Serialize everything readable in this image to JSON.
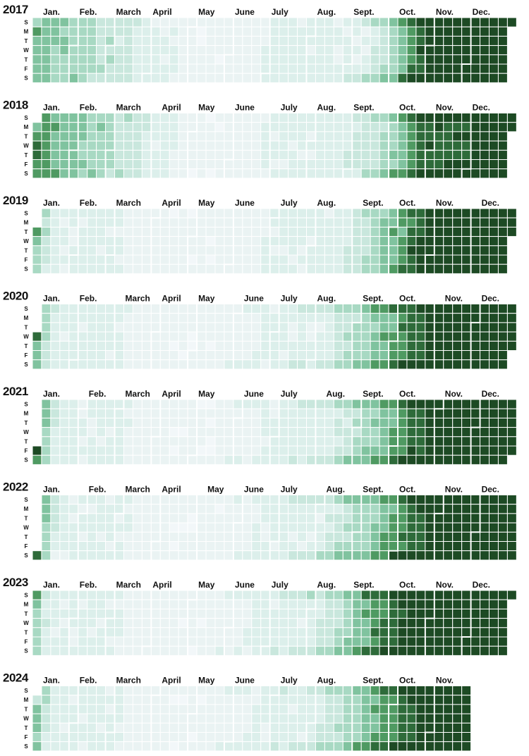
{
  "chart_data": {
    "type": "heatmap",
    "subtype": "calendar",
    "title": "",
    "years": [
      2017,
      2018,
      2019,
      2020,
      2021,
      2022,
      2023,
      2024
    ],
    "month_labels": [
      "Jan.",
      "Feb.",
      "March",
      "April",
      "May",
      "June",
      "July",
      "Aug.",
      "Sept.",
      "Oct.",
      "Nov.",
      "Dec."
    ],
    "day_labels": [
      "S",
      "M",
      "T",
      "W",
      "T",
      "F",
      "S"
    ],
    "palette": [
      "#f2f7f9",
      "#eaf3f3",
      "#dcefeb",
      "#c9e7dd",
      "#a8d9c3",
      "#80c39f",
      "#4f9a62",
      "#2e6b3a",
      "#1d4a24"
    ],
    "colors": {
      "lightest": "#f2f7f9",
      "darkest": "#1d4a24",
      "divider": "#ffffff"
    },
    "level_scale": "0 = lightest, 8 = darkest",
    "last_day_2024": "2024-11-30",
    "intensity_profiles": {
      "2017": [
        [
          0,
          4,
          1
        ],
        [
          1,
          5,
          2
        ],
        [
          126,
          1,
          1
        ],
        [
          229,
          2,
          2
        ],
        [
          254,
          2,
          3
        ],
        [
          266,
          3,
          4
        ],
        [
          276,
          4,
          5
        ],
        [
          283,
          5,
          6
        ],
        [
          288,
          6,
          7
        ],
        [
          296,
          7,
          8
        ],
        [
          305,
          8,
          8
        ],
        [
          365,
          8,
          8
        ]
      ],
      "2018": [
        [
          0,
          4,
          1
        ],
        [
          1,
          6,
          2
        ],
        [
          120,
          1,
          1
        ],
        [
          229,
          2,
          2
        ],
        [
          252,
          3,
          3
        ],
        [
          262,
          3,
          4
        ],
        [
          273,
          4,
          5
        ],
        [
          282,
          5,
          6
        ],
        [
          289,
          6,
          7
        ],
        [
          300,
          7,
          8
        ],
        [
          365,
          8,
          8
        ]
      ],
      "2019": [
        [
          0,
          6,
          2
        ],
        [
          1,
          4,
          3
        ],
        [
          14,
          2,
          2
        ],
        [
          120,
          1,
          1
        ],
        [
          229,
          2,
          2
        ],
        [
          250,
          3,
          3
        ],
        [
          259,
          4,
          4
        ],
        [
          270,
          5,
          5
        ],
        [
          280,
          5,
          6
        ],
        [
          289,
          7,
          7
        ],
        [
          301,
          8,
          8
        ],
        [
          365,
          8,
          8
        ]
      ],
      "2020": [
        [
          0,
          7,
          2
        ],
        [
          1,
          5,
          3
        ],
        [
          14,
          2,
          2
        ],
        [
          120,
          1,
          1
        ],
        [
          219,
          2,
          3
        ],
        [
          236,
          3,
          4
        ],
        [
          252,
          4,
          5
        ],
        [
          266,
          5,
          6
        ],
        [
          280,
          6,
          7
        ],
        [
          290,
          7,
          8
        ],
        [
          307,
          8,
          8
        ],
        [
          366,
          8,
          8
        ]
      ],
      "2021": [
        [
          0,
          8,
          4
        ],
        [
          1,
          5,
          3
        ],
        [
          14,
          2,
          2
        ],
        [
          120,
          1,
          1
        ],
        [
          219,
          2,
          3
        ],
        [
          236,
          3,
          4
        ],
        [
          252,
          4,
          5
        ],
        [
          266,
          5,
          6
        ],
        [
          276,
          6,
          7
        ],
        [
          288,
          7,
          8
        ],
        [
          304,
          8,
          8
        ],
        [
          365,
          8,
          8
        ]
      ],
      "2022": [
        [
          0,
          6,
          3
        ],
        [
          1,
          5,
          3
        ],
        [
          14,
          2,
          2
        ],
        [
          120,
          1,
          1
        ],
        [
          209,
          2,
          3
        ],
        [
          230,
          3,
          4
        ],
        [
          248,
          4,
          5
        ],
        [
          263,
          5,
          6
        ],
        [
          274,
          6,
          7
        ],
        [
          286,
          7,
          8
        ],
        [
          303,
          8,
          8
        ],
        [
          365,
          8,
          8
        ]
      ],
      "2023": [
        [
          0,
          6,
          3
        ],
        [
          1,
          4,
          3
        ],
        [
          14,
          2,
          2
        ],
        [
          120,
          1,
          1
        ],
        [
          209,
          2,
          3
        ],
        [
          230,
          3,
          4
        ],
        [
          240,
          4,
          5
        ],
        [
          252,
          5,
          6
        ],
        [
          264,
          6,
          7
        ],
        [
          276,
          7,
          8
        ],
        [
          290,
          8,
          8
        ],
        [
          365,
          8,
          8
        ]
      ],
      "2024": [
        [
          0,
          3,
          2
        ],
        [
          1,
          5,
          3
        ],
        [
          14,
          2,
          2
        ],
        [
          120,
          1,
          1
        ],
        [
          209,
          2,
          3
        ],
        [
          231,
          3,
          4
        ],
        [
          245,
          4,
          5
        ],
        [
          258,
          5,
          6
        ],
        [
          270,
          6,
          7
        ],
        [
          286,
          7,
          8
        ],
        [
          300,
          8,
          8
        ],
        [
          334,
          8,
          8
        ]
      ]
    }
  }
}
